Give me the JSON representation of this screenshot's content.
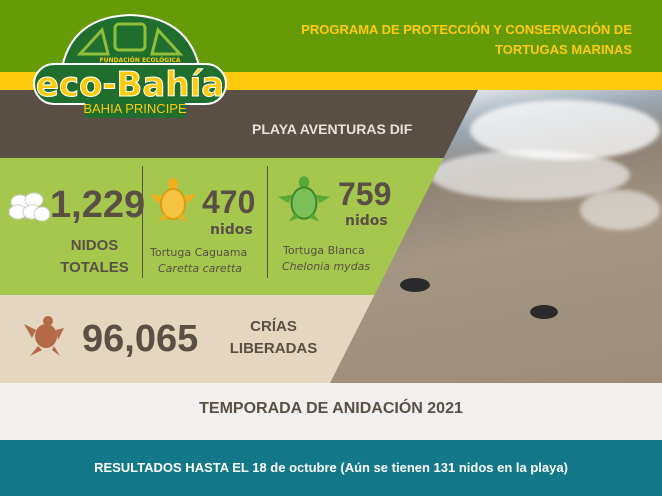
{
  "logo": {
    "top_text": "FUNDACIÓN ECOLÓGICA",
    "name": "eco-Bahía",
    "sub": "BAHIA PRINCIPE"
  },
  "header": {
    "title_line1": "PROGRAMA DE PROTECCIÓN Y CONSERVACIÓN DE",
    "title_line2": "TORTUGAS MARINAS"
  },
  "beach": "PLAYA AVENTURAS DIF",
  "stats": {
    "total": {
      "value": "1,229",
      "label1": "NIDOS",
      "label2": "TOTALES"
    },
    "caguama": {
      "value": "470",
      "unit": "nidos",
      "name": "Tortuga Caguama",
      "scientific": "Caretta caretta"
    },
    "blanca": {
      "value": "759",
      "unit": "nidos",
      "name": "Tortuga Blanca",
      "scientific": "Chelonia mydas"
    },
    "crias": {
      "value": "96,065",
      "label1": "CRÍAS",
      "label2": "LIBERADAS"
    }
  },
  "season": "TEMPORADA DE ANIDACIÓN 2021",
  "results": "RESULTADOS HASTA EL 18 de octubre (Aún se tienen 131 nidos en la playa)",
  "colors": {
    "green": "#659b07",
    "yellow": "#fdcb0b",
    "brown": "#5a4f45",
    "light_green": "#a5c74d",
    "beige": "#e5d7bf",
    "teal": "#12788a",
    "caguama": "#f0b020",
    "blanca": "#5aa83a",
    "hatchling": "#b46a48"
  }
}
